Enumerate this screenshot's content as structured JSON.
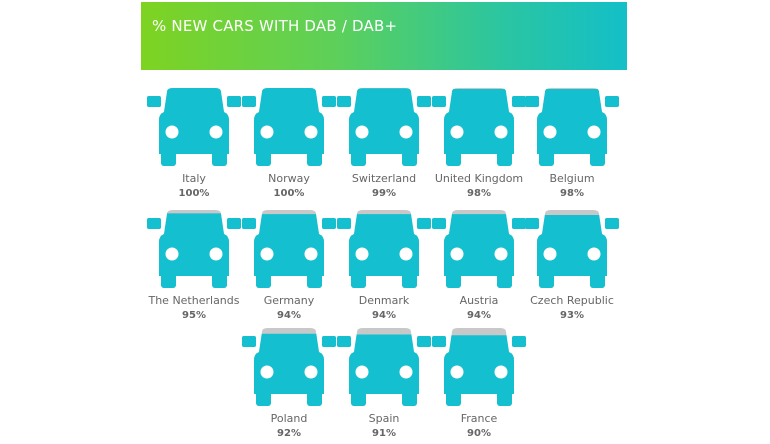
{
  "chart_data": {
    "type": "pictograph",
    "title": "% NEW CARS WITH DAB / DAB+",
    "categories": [
      "Italy",
      "Norway",
      "Switzerland",
      "United Kingdom",
      "Belgium",
      "The Netherlands",
      "Germany",
      "Denmark",
      "Austria",
      "Czech Republic",
      "Poland",
      "Spain",
      "France"
    ],
    "values": [
      100,
      100,
      99,
      98,
      98,
      95,
      94,
      94,
      94,
      93,
      92,
      91,
      90
    ],
    "value_labels": [
      "100%",
      "100%",
      "99%",
      "98%",
      "98%",
      "95%",
      "94%",
      "94%",
      "94%",
      "93%",
      "92%",
      "91%",
      "90%"
    ],
    "ylim": [
      0,
      100
    ],
    "colors": {
      "filled": "#14bfcf",
      "empty": "#c8c8c8",
      "text": "#666666"
    }
  }
}
